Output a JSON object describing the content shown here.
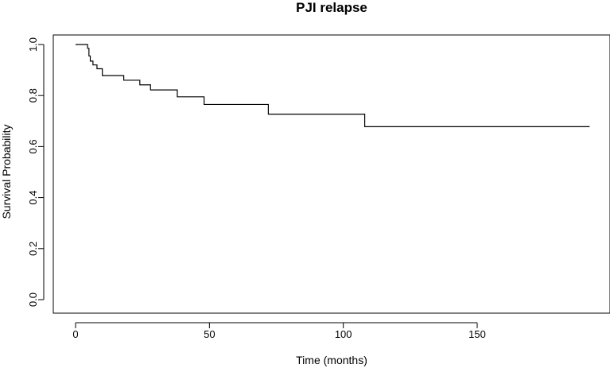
{
  "chart_data": {
    "type": "line",
    "title": "PJI relapse",
    "xlabel": "Time (months)",
    "ylabel": "Survival Probability",
    "xlim": [
      0,
      192
    ],
    "ylim": [
      0,
      1
    ],
    "x_ticks": [
      0,
      50,
      100,
      150
    ],
    "y_ticks": [
      0.0,
      0.2,
      0.4,
      0.6,
      0.8,
      1.0
    ],
    "x_tick_labels": [
      "0",
      "50",
      "100",
      "150"
    ],
    "y_tick_labels": [
      "0.0",
      "0.2",
      "0.4",
      "0.6",
      "0.8",
      "1.0"
    ],
    "grid": false,
    "legend": "none",
    "line_style": "step",
    "line_color": "#000000",
    "series": [
      {
        "x": [
          0,
          4.5,
          5,
          5.5,
          6.5,
          8,
          10,
          18,
          24,
          28,
          38,
          48,
          72,
          108,
          192
        ],
        "y": [
          1.0,
          0.985,
          0.955,
          0.935,
          0.92,
          0.905,
          0.878,
          0.86,
          0.842,
          0.822,
          0.795,
          0.765,
          0.727,
          0.678,
          0.678
        ]
      }
    ]
  }
}
